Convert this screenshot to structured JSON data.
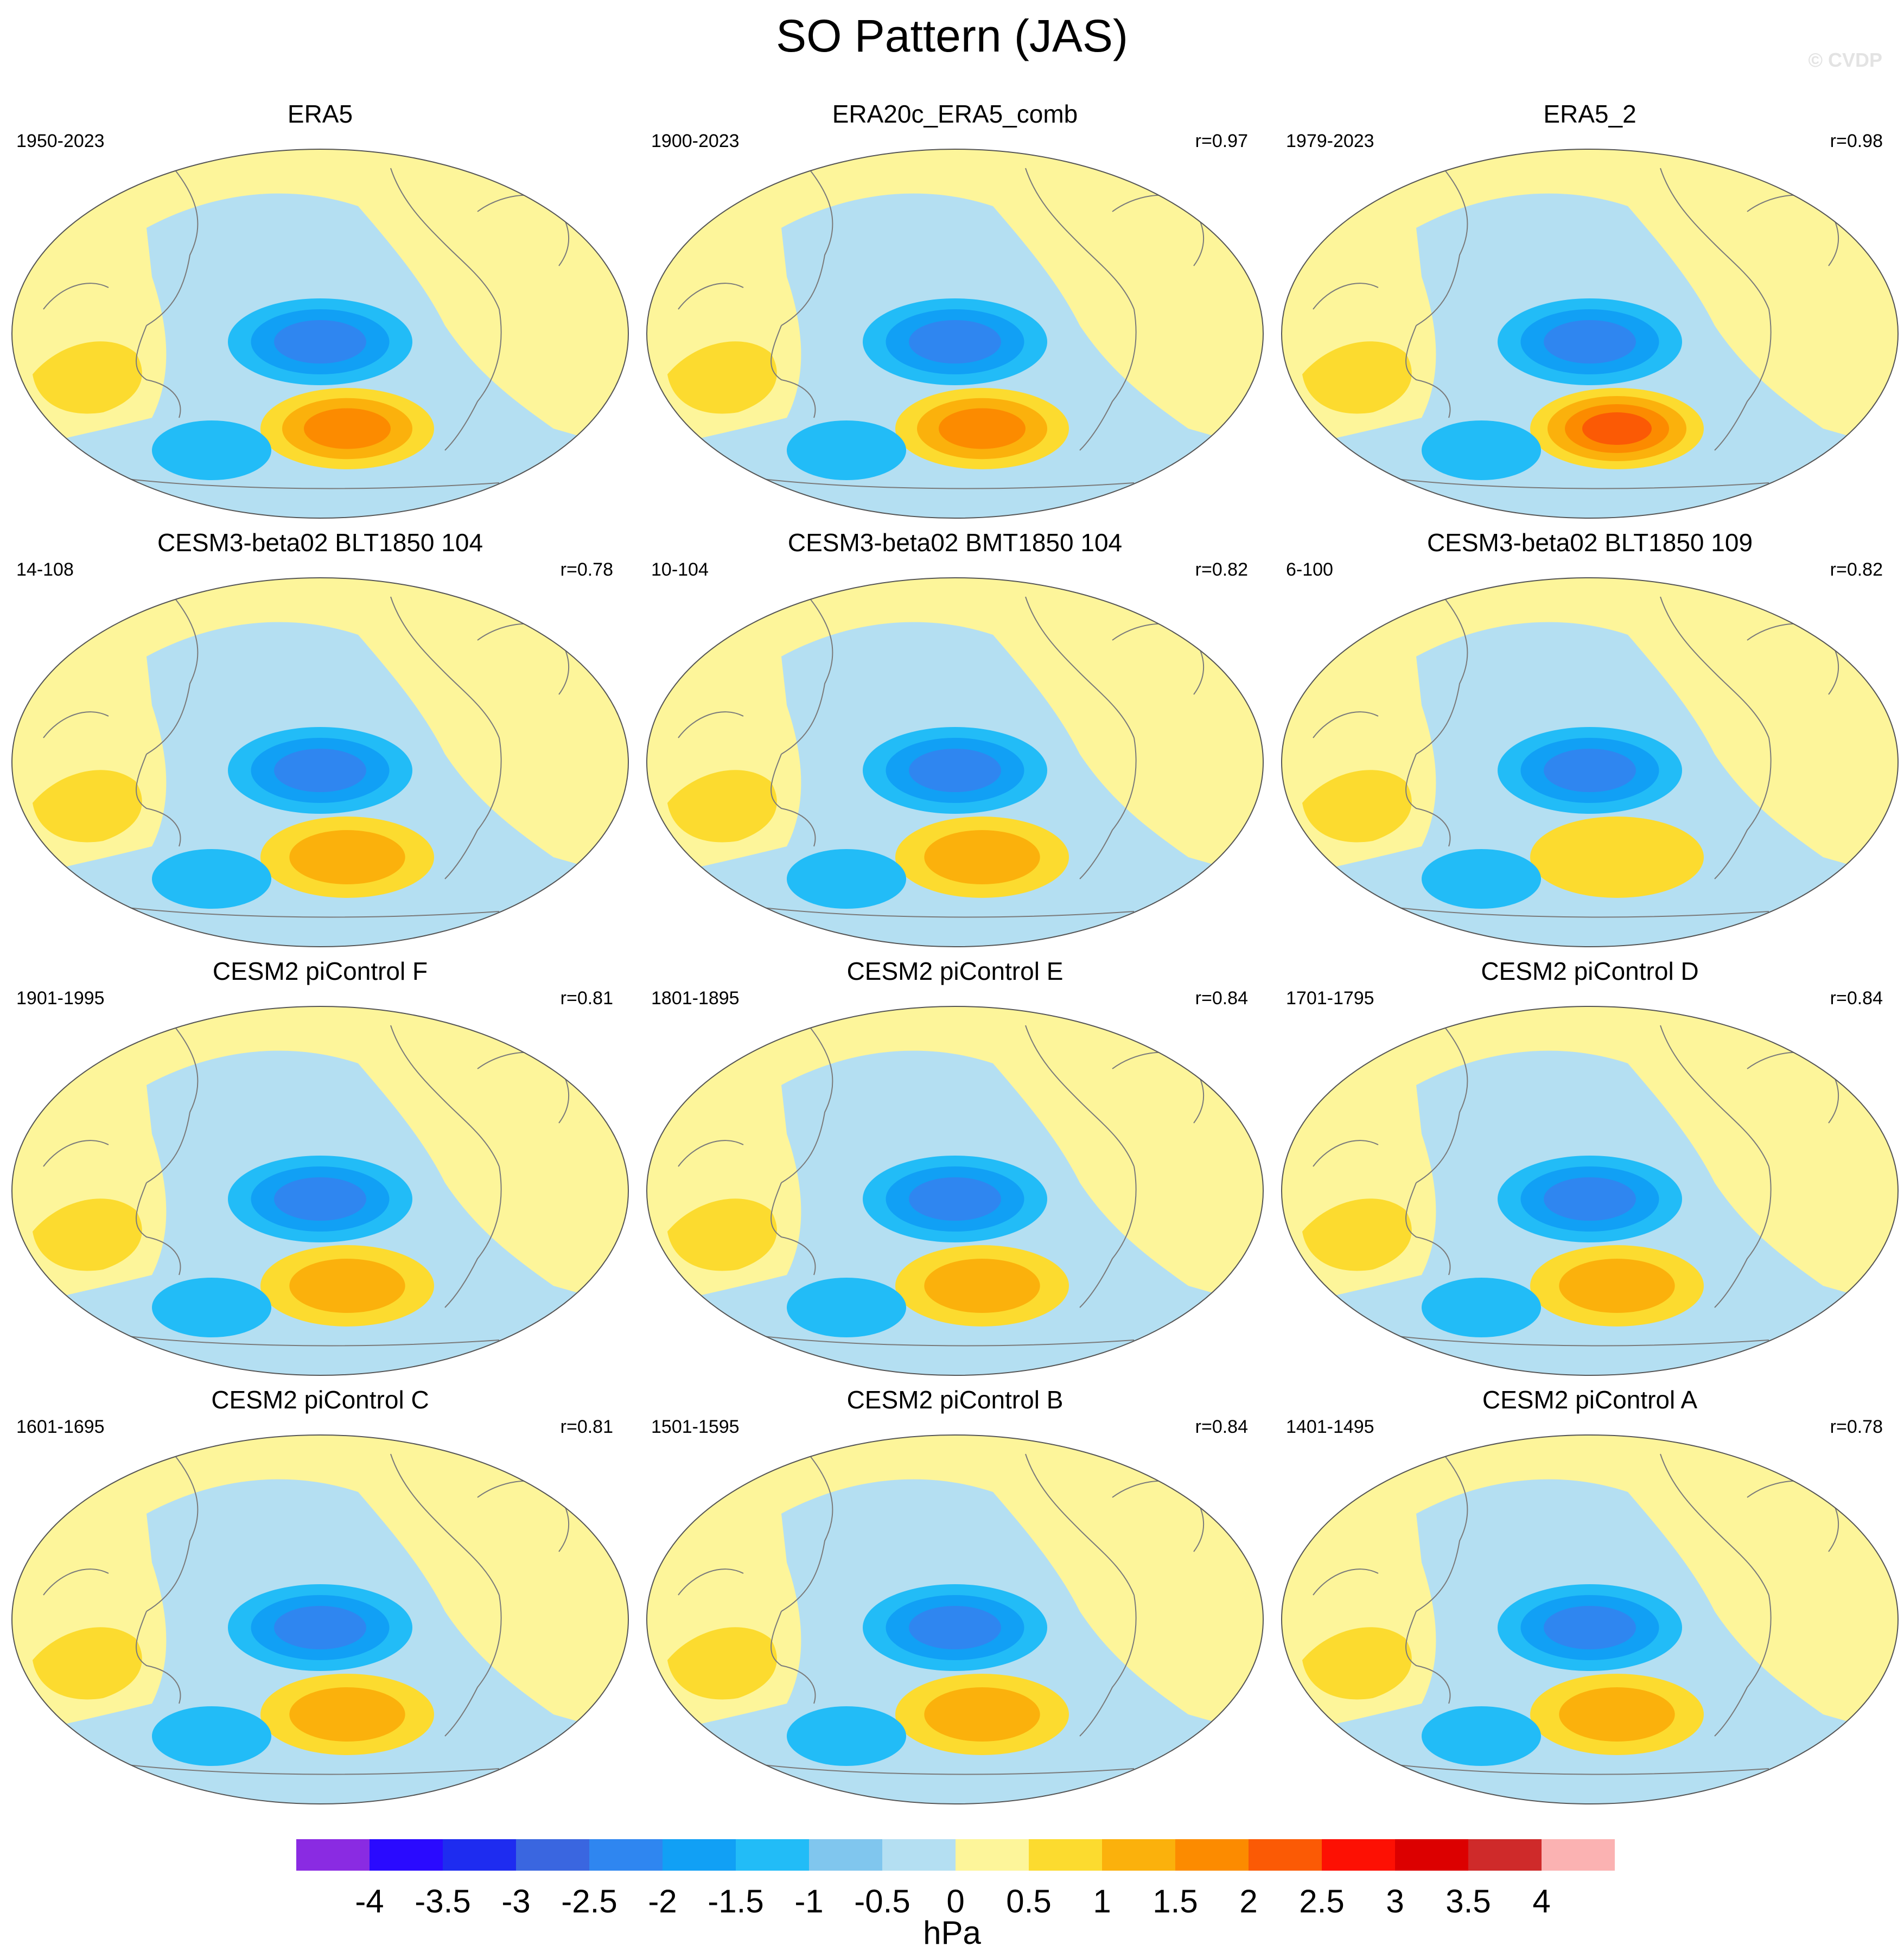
{
  "title": "SO Pattern (JAS)",
  "watermark": "© CVDP",
  "colors": {
    "levels": [
      "#8a2be2",
      "#2a0aff",
      "#1e2cf0",
      "#3a66e0",
      "#2f86f0",
      "#11a0f5",
      "#22bcf7",
      "#80c6ee",
      "#b4dff2",
      "#fdf59a",
      "#fcdb2f",
      "#fbb10c",
      "#fc8b00",
      "#fb5a05",
      "#fd1003",
      "#dc0000",
      "#cf2a2a",
      "#fbb2b2"
    ],
    "coastline": "#7a7a7a",
    "outline": "#555555"
  },
  "colorbar": {
    "ticks": [
      "-4",
      "-3.5",
      "-3",
      "-2.5",
      "-2",
      "-1.5",
      "-1",
      "-0.5",
      "0",
      "0.5",
      "1",
      "1.5",
      "2",
      "2.5",
      "3",
      "3.5",
      "4"
    ],
    "unit": "hPa"
  },
  "panels": [
    {
      "title": "ERA5",
      "range": "1950-2023",
      "corr": "",
      "neg_max": 2.1,
      "pos_max": 2.0
    },
    {
      "title": "ERA20c_ERA5_comb",
      "range": "1900-2023",
      "corr": "r=0.97",
      "neg_max": 2.0,
      "pos_max": 2.2
    },
    {
      "title": "ERA5_2",
      "range": "1979-2023",
      "corr": "r=0.98",
      "neg_max": 2.0,
      "pos_max": 2.3
    },
    {
      "title": "CESM3-beta02 BLT1850 104",
      "range": "14-108",
      "corr": "r=0.78",
      "neg_max": 2.1,
      "pos_max": 1.3
    },
    {
      "title": "CESM3-beta02 BMT1850 104",
      "range": "10-104",
      "corr": "r=0.82",
      "neg_max": 2.1,
      "pos_max": 1.3
    },
    {
      "title": "CESM3-beta02 BLT1850 109",
      "range": "6-100",
      "corr": "r=0.82",
      "neg_max": 2.0,
      "pos_max": 1.2
    },
    {
      "title": "CESM2 piControl F",
      "range": "1901-1995",
      "corr": "r=0.81",
      "neg_max": 2.0,
      "pos_max": 1.3
    },
    {
      "title": "CESM2 piControl E",
      "range": "1801-1895",
      "corr": "r=0.84",
      "neg_max": 2.0,
      "pos_max": 1.7
    },
    {
      "title": "CESM2 piControl D",
      "range": "1701-1795",
      "corr": "r=0.84",
      "neg_max": 2.0,
      "pos_max": 1.7
    },
    {
      "title": "CESM2 piControl C",
      "range": "1601-1695",
      "corr": "r=0.81",
      "neg_max": 2.0,
      "pos_max": 1.7
    },
    {
      "title": "CESM2 piControl B",
      "range": "1501-1595",
      "corr": "r=0.84",
      "neg_max": 2.0,
      "pos_max": 1.3
    },
    {
      "title": "CESM2 piControl A",
      "range": "1401-1495",
      "corr": "r=0.78",
      "neg_max": 2.0,
      "pos_max": 1.3
    }
  ]
}
